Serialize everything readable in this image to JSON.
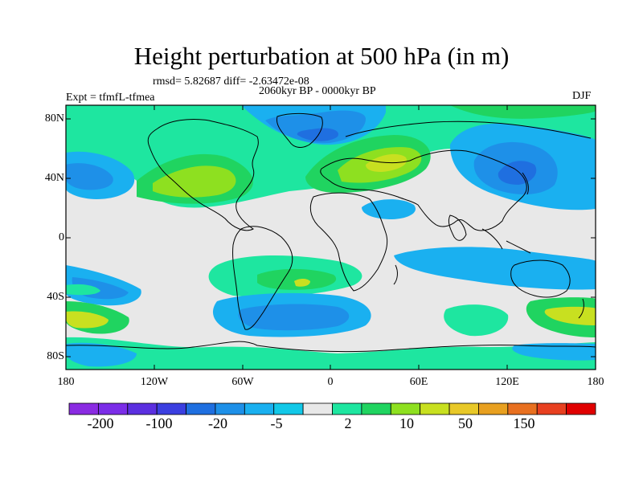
{
  "title": "Height perturbation at 500 hPa (in m)",
  "stats_line": "rmsd= 5.82687 diff= -2.63472e-08",
  "period": "2060kyr BP - 0000kyr BP",
  "experiment": "Expt = tfmfL-tfmea",
  "season": "DJF",
  "y_axis_labels": [
    "80N",
    "40N",
    "0",
    "40S",
    "80S"
  ],
  "x_axis_labels": [
    "180",
    "120W",
    "60W",
    "0",
    "60E",
    "120E",
    "180"
  ],
  "colorbar": {
    "colors": [
      "#8a2be2",
      "#7b2de8",
      "#5b2fe0",
      "#3b3fe0",
      "#1f6fe0",
      "#1e90e8",
      "#1ab0f0",
      "#12c8e8",
      "#e8e8e8",
      "#1ee6a0",
      "#20d460",
      "#8ee020",
      "#c8e020",
      "#e8c828",
      "#e8a020",
      "#e87020",
      "#e84020",
      "#e00000"
    ],
    "labels": [
      "-200",
      "-100",
      "-20",
      "-5",
      "2",
      "10",
      "50",
      "150"
    ]
  }
}
